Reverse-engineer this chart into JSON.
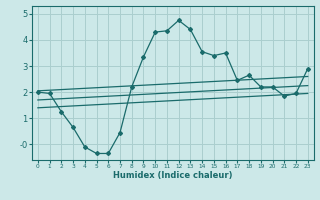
{
  "xlabel": "Humidex (Indice chaleur)",
  "bg_color": "#cce8e8",
  "grid_color": "#aacece",
  "line_color": "#1a6b6b",
  "xlim": [
    -0.5,
    23.5
  ],
  "ylim": [
    -0.6,
    5.3
  ],
  "xticks": [
    0,
    1,
    2,
    3,
    4,
    5,
    6,
    7,
    8,
    9,
    10,
    11,
    12,
    13,
    14,
    15,
    16,
    17,
    18,
    19,
    20,
    21,
    22,
    23
  ],
  "yticks": [
    0,
    1,
    2,
    3,
    4,
    5
  ],
  "ytick_labels": [
    "-0",
    "1",
    "2",
    "3",
    "4",
    "5"
  ],
  "curve_x": [
    0,
    1,
    2,
    3,
    4,
    5,
    6,
    7,
    8,
    9,
    10,
    11,
    12,
    13,
    14,
    15,
    16,
    17,
    18,
    19,
    20,
    21,
    22,
    23
  ],
  "curve_y": [
    2.0,
    1.95,
    1.25,
    0.65,
    -0.1,
    -0.35,
    -0.35,
    0.45,
    2.2,
    3.35,
    4.3,
    4.35,
    4.75,
    4.4,
    3.55,
    3.4,
    3.5,
    2.45,
    2.65,
    2.2,
    2.2,
    1.85,
    1.95,
    2.9
  ],
  "line1_x": [
    0,
    23
  ],
  "line1_y": [
    2.05,
    2.6
  ],
  "line2_x": [
    0,
    23
  ],
  "line2_y": [
    1.7,
    2.25
  ],
  "line3_x": [
    0,
    23
  ],
  "line3_y": [
    1.4,
    1.95
  ]
}
